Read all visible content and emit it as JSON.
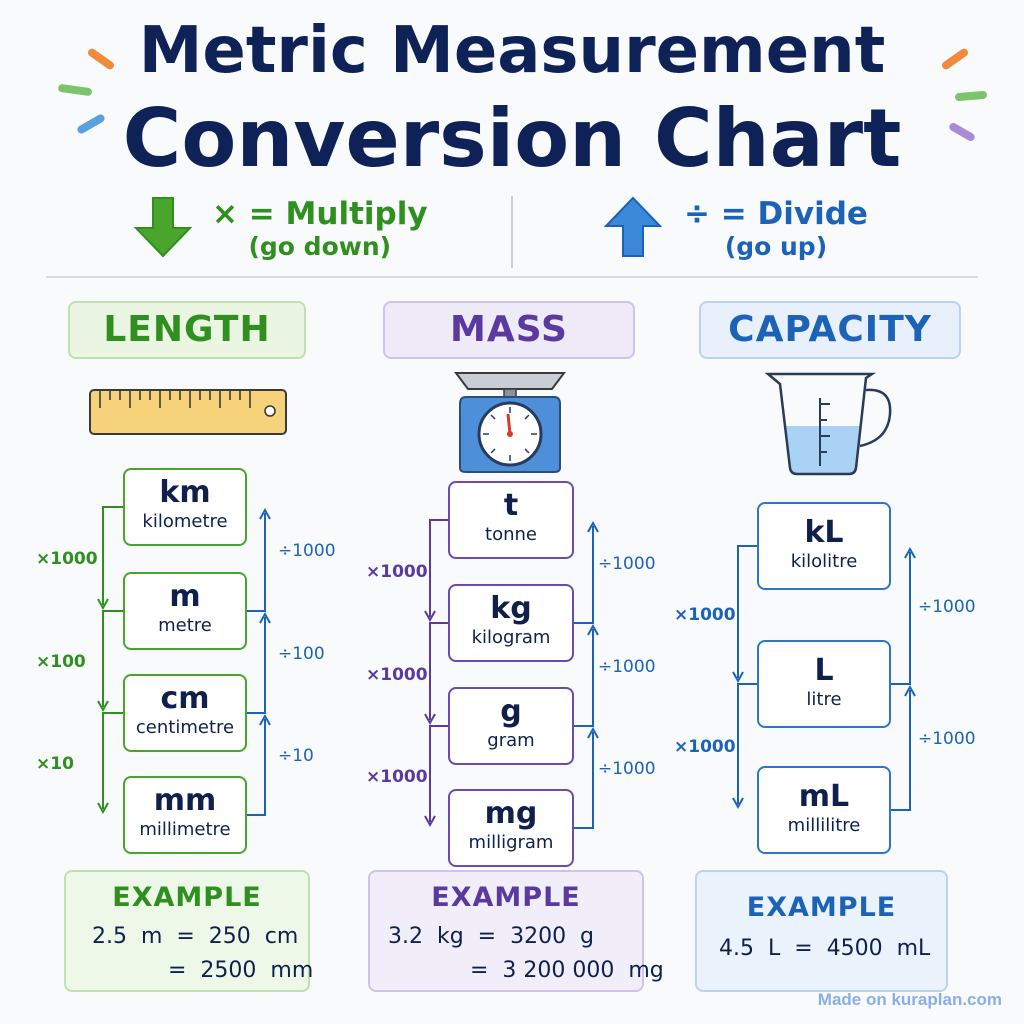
{
  "title": {
    "line1": "Metric Measurement",
    "line2": "Conversion Chart"
  },
  "legend": {
    "multiply": {
      "line1": "× = Multiply",
      "line2": "(go down)",
      "icon": "down-arrow-icon",
      "color": "#2f8f1f"
    },
    "divide": {
      "line1": "÷ = Divide",
      "line2": "(go up)",
      "icon": "up-arrow-icon",
      "color": "#1c63b8"
    }
  },
  "categories": [
    {
      "id": "length",
      "label": "LENGTH",
      "icon": "ruler-icon",
      "color": "#2f8f1f",
      "units": [
        {
          "symbol": "km",
          "name": "kilometre"
        },
        {
          "symbol": "m",
          "name": "metre"
        },
        {
          "symbol": "cm",
          "name": "centimetre"
        },
        {
          "symbol": "mm",
          "name": "millimetre"
        }
      ],
      "multiply": [
        "×1000",
        "×100",
        "×10"
      ],
      "divide": [
        "÷1000",
        "÷100",
        "÷10"
      ],
      "example": {
        "title": "EXAMPLE",
        "lines": [
          "2.5  m  =  250  cm",
          "=  2500  mm"
        ]
      }
    },
    {
      "id": "mass",
      "label": "MASS",
      "icon": "scale-icon",
      "color": "#5b3aa0",
      "units": [
        {
          "symbol": "t",
          "name": "tonne"
        },
        {
          "symbol": "kg",
          "name": "kilogram"
        },
        {
          "symbol": "g",
          "name": "gram"
        },
        {
          "symbol": "mg",
          "name": "milligram"
        }
      ],
      "multiply": [
        "×1000",
        "×1000",
        "×1000"
      ],
      "divide": [
        "÷1000",
        "÷1000",
        "÷1000"
      ],
      "example": {
        "title": "EXAMPLE",
        "lines": [
          "3.2  kg  =  3200  g",
          "=  3 200 000  mg"
        ]
      }
    },
    {
      "id": "capacity",
      "label": "CAPACITY",
      "icon": "measuring-jug-icon",
      "color": "#1c63b8",
      "units": [
        {
          "symbol": "kL",
          "name": "kilolitre"
        },
        {
          "symbol": "L",
          "name": "litre"
        },
        {
          "symbol": "mL",
          "name": "millilitre"
        }
      ],
      "multiply": [
        "×1000",
        "×1000"
      ],
      "divide": [
        "÷1000",
        "÷1000"
      ],
      "example": {
        "title": "EXAMPLE",
        "lines": [
          "4.5  L  =  4500  mL"
        ]
      }
    }
  ],
  "footer": "Made on kuraplan.com"
}
